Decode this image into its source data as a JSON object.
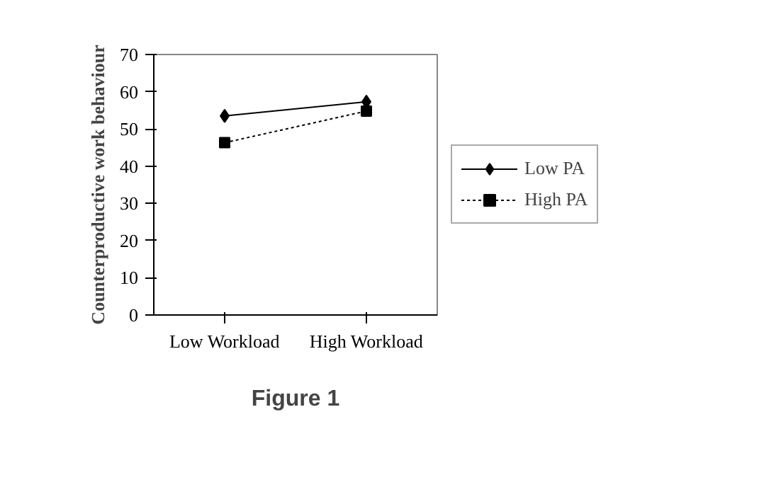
{
  "chart_data": {
    "type": "line",
    "ylabel": "Counterproductive work behaviour",
    "categories": [
      "Low Workload",
      "High Workload"
    ],
    "series": [
      {
        "name": "Low PA",
        "color": "#000000",
        "values": [
          53.5,
          57.3
        ],
        "marker": "diamond",
        "line_style": "solid"
      },
      {
        "name": "High PA",
        "color": "#000000",
        "values": [
          46.3,
          54.8
        ],
        "marker": "square",
        "line_style": "dotted"
      }
    ],
    "ylim": [
      0,
      70
    ],
    "yticks": [
      0,
      10,
      20,
      30,
      40,
      50,
      60,
      70
    ],
    "grid": false,
    "legend": "right",
    "annotations": [
      "Figure 1"
    ]
  }
}
